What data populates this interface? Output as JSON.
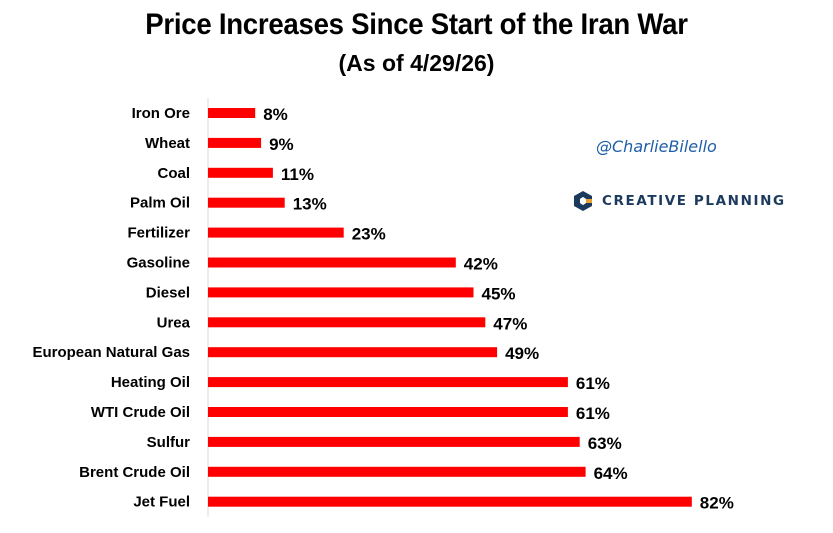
{
  "chart_data": {
    "type": "bar",
    "orientation": "horizontal",
    "title": "Price Increases Since Start of the Iran War",
    "subtitle": "(As of 4/29/26)",
    "categories": [
      "Iron Ore",
      "Wheat",
      "Coal",
      "Palm Oil",
      "Fertilizer",
      "Gasoline",
      "Diesel",
      "Urea",
      "European Natural Gas",
      "Heating Oil",
      "WTI Crude Oil",
      "Sulfur",
      "Brent Crude Oil",
      "Jet Fuel"
    ],
    "values": [
      8,
      9,
      11,
      13,
      23,
      42,
      45,
      47,
      49,
      61,
      61,
      63,
      64,
      82
    ],
    "data_labels": [
      "8%",
      "9%",
      "11%",
      "13%",
      "23%",
      "42%",
      "45%",
      "47%",
      "49%",
      "61%",
      "61%",
      "63%",
      "64%",
      "82%"
    ],
    "xlim": [
      0,
      100
    ],
    "grid": false,
    "bar_color": "#ff0000"
  },
  "watermark": {
    "handle": "@CharlieBilello",
    "brand": "CREATIVE PLANNING",
    "brand_color": "#1c3a5e",
    "handle_color": "#1f5fa8"
  }
}
